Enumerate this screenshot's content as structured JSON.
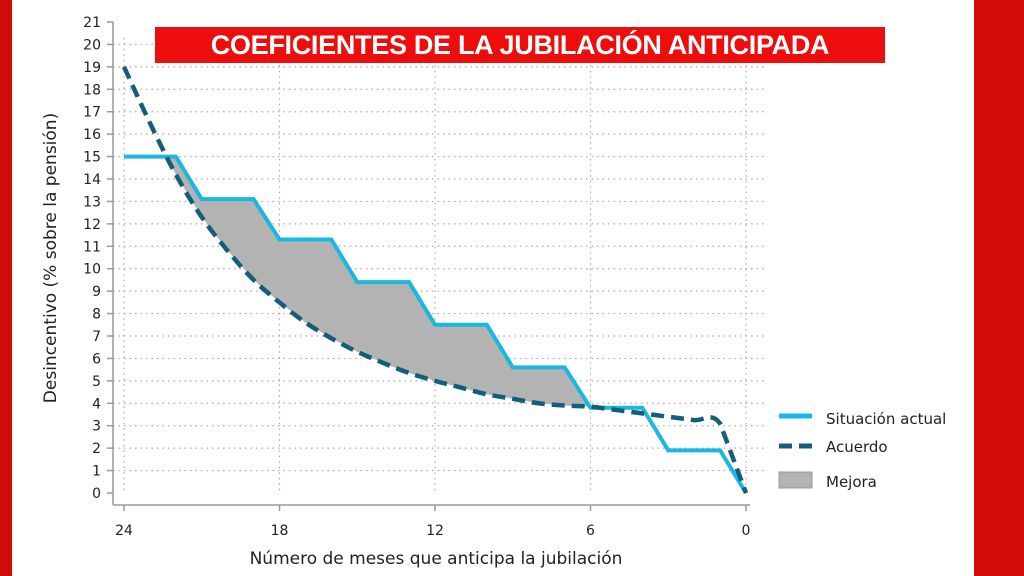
{
  "chart_data": {
    "type": "line",
    "title": "COEFICIENTES DE LA JUBILACIÓN ANTICIPADA",
    "xlabel": "Número de meses que anticipa la jubilación",
    "ylabel": "Desincentivo (% sobre la pensión)",
    "xlim": [
      24,
      0
    ],
    "ylim": [
      0,
      21
    ],
    "x_ticks": [
      "24",
      "18",
      "12",
      "6",
      "0"
    ],
    "x_tick_values": [
      24,
      18,
      12,
      6,
      0
    ],
    "y_ticks": [
      "0",
      "1",
      "2",
      "3",
      "4",
      "5",
      "6",
      "7",
      "8",
      "9",
      "10",
      "11",
      "12",
      "13",
      "14",
      "15",
      "16",
      "17",
      "18",
      "19",
      "20",
      "21"
    ],
    "grid": true,
    "legend_position": "right",
    "series": [
      {
        "name": "Situación actual",
        "style": "solid",
        "color": "#1ab8e0",
        "x": [
          24,
          22,
          21,
          19,
          18,
          16,
          15,
          13,
          12,
          10,
          9,
          7,
          6,
          4,
          3,
          1,
          0
        ],
        "y": [
          15,
          15,
          13.1,
          13.1,
          11.3,
          11.3,
          9.4,
          9.4,
          7.5,
          7.5,
          5.6,
          5.6,
          3.8,
          3.8,
          1.9,
          1.9,
          0
        ]
      },
      {
        "name": "Acuerdo",
        "style": "dashed",
        "color": "#135e78",
        "x": [
          24,
          23,
          22,
          21,
          20,
          19,
          18,
          17,
          16,
          15,
          14,
          13,
          12,
          11,
          10,
          9,
          8,
          7,
          6,
          5,
          4,
          3,
          2,
          1,
          0
        ],
        "y": [
          19,
          16.5,
          14.2,
          12.3,
          10.8,
          9.5,
          8.5,
          7.6,
          6.9,
          6.3,
          5.8,
          5.35,
          5.0,
          4.7,
          4.4,
          4.2,
          4.0,
          3.9,
          3.85,
          3.7,
          3.55,
          3.4,
          3.25,
          3.1,
          0
        ]
      },
      {
        "name": "Mejora",
        "style": "area",
        "color": "#b3b3b3"
      }
    ]
  }
}
